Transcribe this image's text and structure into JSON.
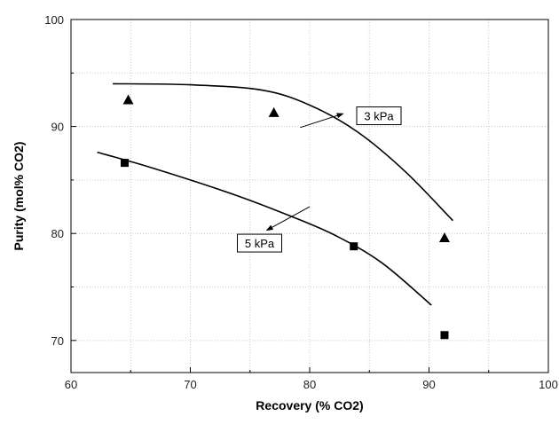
{
  "chart_data": {
    "type": "scatter",
    "title": "",
    "xlabel": "Recovery (% CO2)",
    "ylabel": "Purity (mol% CO2)",
    "xlim": [
      60,
      100
    ],
    "ylim": [
      67,
      100
    ],
    "xticks": [
      60,
      70,
      80,
      90,
      100
    ],
    "yticks": [
      70,
      80,
      90,
      100
    ],
    "grid": true,
    "series": [
      {
        "marker": "triangle",
        "color": "#000000",
        "points": [
          [
            64.8,
            92.5
          ],
          [
            77.0,
            91.3
          ],
          [
            91.3,
            79.6
          ]
        ],
        "fit_curve": [
          [
            63.5,
            94.0
          ],
          [
            70.0,
            93.9
          ],
          [
            76.0,
            93.4
          ],
          [
            80.0,
            92.0
          ],
          [
            84.0,
            89.5
          ],
          [
            88.0,
            85.8
          ],
          [
            92.0,
            81.2
          ]
        ]
      },
      {
        "marker": "square",
        "color": "#000000",
        "points": [
          [
            64.5,
            86.6
          ],
          [
            83.7,
            78.8
          ],
          [
            91.3,
            70.5
          ]
        ],
        "fit_curve": [
          [
            62.2,
            87.6
          ],
          [
            66.0,
            86.4
          ],
          [
            70.0,
            85.0
          ],
          [
            74.0,
            83.5
          ],
          [
            78.0,
            81.8
          ],
          [
            82.0,
            79.9
          ],
          [
            86.0,
            77.3
          ],
          [
            90.2,
            73.3
          ]
        ]
      }
    ],
    "annotations": [
      {
        "text": "3 kPa",
        "box_at": [
          85.8,
          91.0
        ],
        "arrow_from": [
          79.2,
          89.9
        ],
        "arrow_to": [
          82.8,
          91.2
        ]
      },
      {
        "text": "5 kPa",
        "box_at": [
          75.8,
          79.1
        ],
        "arrow_from": [
          80.0,
          82.5
        ],
        "arrow_to": [
          76.4,
          80.3
        ]
      }
    ]
  }
}
